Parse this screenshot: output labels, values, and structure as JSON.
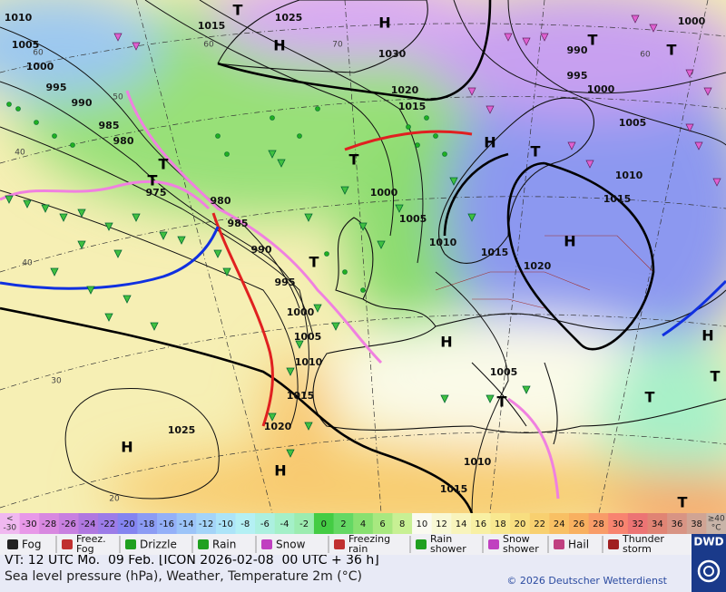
{
  "map": {
    "isobar_labels": [
      "1010",
      "1015",
      "1025",
      "1000",
      "1005",
      "1030",
      "1000",
      "995",
      "995",
      "1020",
      "1000",
      "990",
      "1015",
      "990",
      "985",
      "1005",
      "980",
      "975",
      "980",
      "1000",
      "1010",
      "1015",
      "1005",
      "985",
      "1010",
      "1015",
      "990",
      "1020",
      "995",
      "1000",
      "1005",
      "1010",
      "1015",
      "1005",
      "1020",
      "1025",
      "1010",
      "1015"
    ],
    "grid_labels": [
      "60",
      "60",
      "70",
      "60",
      "50",
      "40",
      "40",
      "30",
      "20"
    ],
    "highs": [
      "H",
      "H",
      "H",
      "H",
      "H",
      "H",
      "H",
      "H"
    ],
    "lows": [
      "T",
      "T",
      "T",
      "T",
      "T",
      "T",
      "T",
      "T",
      "T",
      "T",
      "T",
      "T"
    ]
  },
  "color_scale": {
    "low_cell": {
      "lines": [
        "<",
        "-30"
      ],
      "color": "#f0b8f0"
    },
    "cells": [
      {
        "label": -30,
        "color": "#e898e8"
      },
      {
        "label": -28,
        "color": "#d888e0"
      },
      {
        "label": -26,
        "color": "#c880e0"
      },
      {
        "label": -24,
        "color": "#b078e0"
      },
      {
        "label": -22,
        "color": "#9c7ce8"
      },
      {
        "label": -20,
        "color": "#8484f0"
      },
      {
        "label": -18,
        "color": "#8c9cf4"
      },
      {
        "label": -16,
        "color": "#94b0f8"
      },
      {
        "label": -14,
        "color": "#9cc4f8"
      },
      {
        "label": -12,
        "color": "#a4d4f8"
      },
      {
        "label": -10,
        "color": "#ace4f8"
      },
      {
        "label": -8,
        "color": "#b4f0f4"
      },
      {
        "label": -6,
        "color": "#acf0e0"
      },
      {
        "label": -4,
        "color": "#a4f0c8"
      },
      {
        "label": -2,
        "color": "#9cecb0"
      },
      {
        "label": 0,
        "color": "#44cc44"
      },
      {
        "label": 2,
        "color": "#64d864"
      },
      {
        "label": 4,
        "color": "#88e070"
      },
      {
        "label": 6,
        "color": "#a8e880"
      },
      {
        "label": 8,
        "color": "#c8f094"
      },
      {
        "label": 10,
        "color": "#fafaf0"
      },
      {
        "label": 12,
        "color": "#f8f8d4"
      },
      {
        "label": 14,
        "color": "#f8f4bc"
      },
      {
        "label": 16,
        "color": "#f8f0a4"
      },
      {
        "label": 18,
        "color": "#f8e890"
      },
      {
        "label": 20,
        "color": "#f8de80"
      },
      {
        "label": 22,
        "color": "#f8d070"
      },
      {
        "label": 24,
        "color": "#f8c064"
      },
      {
        "label": 26,
        "color": "#f8b060"
      },
      {
        "label": 28,
        "color": "#f89c68"
      },
      {
        "label": 30,
        "color": "#f88470"
      },
      {
        "label": 32,
        "color": "#ec7474"
      },
      {
        "label": 34,
        "color": "#e08474"
      },
      {
        "label": 36,
        "color": "#d89484"
      },
      {
        "label": 38,
        "color": "#d0a494"
      }
    ],
    "high_cell": {
      "lines": [
        "≥40",
        "°C"
      ],
      "color": "#c8b4a8"
    }
  },
  "legend": [
    {
      "lines": [
        "Fog"
      ]
    },
    {
      "lines": [
        "Freez.",
        "Fog"
      ]
    },
    {
      "lines": [
        "Drizzle"
      ]
    },
    {
      "lines": [
        "Rain"
      ]
    },
    {
      "lines": [
        "Snow"
      ]
    },
    {
      "lines": [
        "Freezing",
        "rain"
      ]
    },
    {
      "lines": [
        "Rain",
        "shower"
      ]
    },
    {
      "lines": [
        "Snow",
        "shower"
      ]
    },
    {
      "lines": [
        "Hail"
      ]
    },
    {
      "lines": [
        "Thunder",
        "storm"
      ]
    }
  ],
  "footer": {
    "valid_time": "VT: 12 UTC Mo.  09 Feb. [ICON 2026-02-08  00 UTC + 36 h]",
    "subtitle": "Sea level pressure (hPa), Weather, Temperature 2m (°C)",
    "copyright": "© 2026 Deutscher Wetterdienst",
    "logo": "DWD"
  }
}
